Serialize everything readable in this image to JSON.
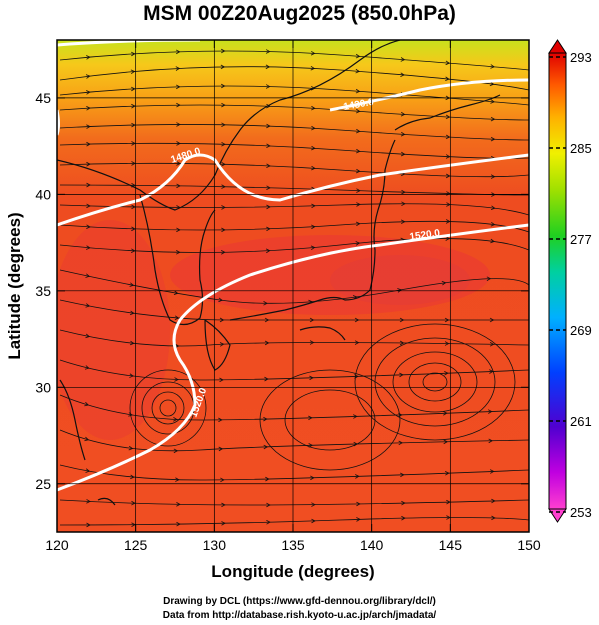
{
  "title": "MSM 00Z20Aug2025 (850.0hPa)",
  "x_axis": {
    "label": "Longitude (degrees)",
    "range": [
      120,
      150
    ],
    "ticks": [
      120,
      125,
      130,
      135,
      140,
      145,
      150
    ],
    "tick_labels": [
      "120",
      "125",
      "130",
      "135",
      "140",
      "145",
      "150"
    ]
  },
  "y_axis": {
    "label": "Latitude  (degrees)",
    "range": [
      22.5,
      48
    ],
    "ticks": [
      25,
      30,
      35,
      40,
      45
    ],
    "tick_labels": [
      "25",
      "30",
      "35",
      "40",
      "45"
    ]
  },
  "colorbar": {
    "range": [
      253,
      293
    ],
    "tick_labels": [
      "293",
      "285",
      "277",
      "269",
      "261",
      "253"
    ],
    "colors": [
      "#ff3fd0",
      "#c000e0",
      "#4000d0",
      "#0040ff",
      "#00b0ff",
      "#00d0a0",
      "#20d020",
      "#a0e000",
      "#f0f000",
      "#ffb000",
      "#ff5a00",
      "#e00000"
    ]
  },
  "contours": [
    {
      "label": "1430.0"
    },
    {
      "label": "1480.0"
    },
    {
      "label": "1520.0"
    },
    {
      "label": "1520.0"
    }
  ],
  "credits": [
    "Drawing by DCL (https://www.gfd-dennou.org/library/dcl/)",
    "Data from http://database.rish.kyoto-u.ac.jp/arch/jmadata/"
  ],
  "colors": {
    "field_main": "#f24a1e",
    "field_warm": "#e83422",
    "field_north": "#f9b01a",
    "field_top": "#c9e21c",
    "contour": "#ffffff",
    "coast": "#111111"
  }
}
